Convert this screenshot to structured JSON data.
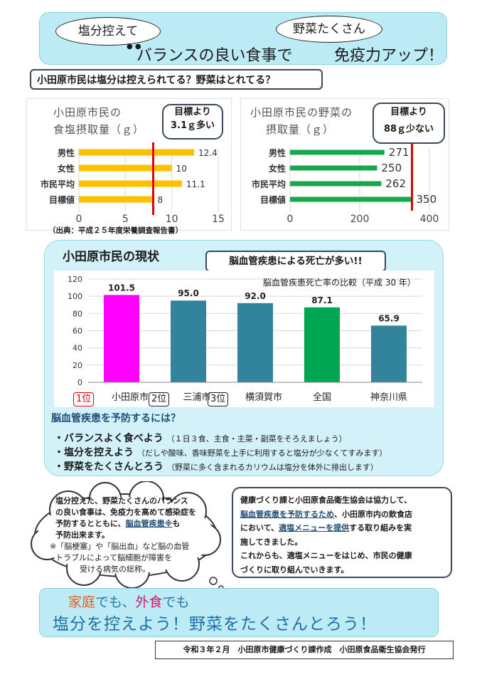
{
  "header": {
    "bubble_left": "塩分控えて",
    "bubble_right": "野菜たくさん",
    "title_main": "バランスの良い食事で",
    "title_sub": "免疫力アップ！"
  },
  "question": "小田原市民は塩分は控えられてる？野菜はとれてる？",
  "salt_panel": {
    "title_line1": "小田原市民の",
    "title_line2": "食塩摂取量（ｇ）",
    "callout_line1": "目標より",
    "callout_line2": "3.1ｇ多い",
    "source": "（出典：平成２５年度栄養調査報告書）"
  },
  "veg_panel": {
    "title_line1": "小田原市民の野菜の",
    "title_line2": "摂取量（ｇ）",
    "callout_line1": "目標より",
    "callout_line2": "88ｇ少ない"
  },
  "status": {
    "title": "小田原市民の現状",
    "headline": "脳血管疾患による死亡が多い!!",
    "chart_title": "脳血管疾患死亡率の比較（平成 30 年）",
    "rank1": "1位",
    "rank2": "2位",
    "rank3": "3位"
  },
  "prevention": {
    "heading": "脳血管疾患を予防するには？",
    "tip1": "・バランスよく食べよう",
    "tip1_note": "（１日３食、主食・主菜・副菜をそろえましょう）",
    "tip2": "・塩分を控えよう",
    "tip2_note": "（だしや酸味、香味野菜を上手に利用すると塩分が少なくてすみます）",
    "tip3": "・野菜をたくさんとろう",
    "tip3_note": "（野菜に多く含まれるカリウムは塩分を体外に排出します）"
  },
  "cloud": {
    "line1": "塩分控えた、野菜たくさんのバランス",
    "line2": "の良い食事は、免疫力を高めて感染症を",
    "line3": "予防するとともに、",
    "line3_link": "脳血管疾患※",
    "line3_end": "も",
    "line4": "予防出来ます。",
    "note1": "※「脳梗塞」や「脳出血」など脳の血管",
    "note2": "トラブルによって脳細胞が障害を",
    "note3": "受ける病気の総称。"
  },
  "info_box": {
    "line1": "健康づくり課と小田原食品衛生協会は協力して、",
    "line2_link": "脳血管疾患を予防するため",
    "line2_end": "、小田原市内の飲食店",
    "line3_a": "において、",
    "line3_link": "適塩メニューを提供",
    "line3_b": "する取り組みを実",
    "line4": "施してきました。",
    "line5": "これからも、適塩メニューをはじめ、市民の健康",
    "line6": "づくりに取り組んでいきます。"
  },
  "bottom_banner": {
    "home": "家庭",
    "de_mo1": "でも、",
    "out": "外食",
    "de_mo2": "でも",
    "slogan": "塩分を控えよう！野菜をたくさんとろう！"
  },
  "footer": "令和３年２月　小田原市健康づくり課作成　小田原食品衛生協会発行",
  "chart_data": [
    {
      "type": "bar",
      "orientation": "horizontal",
      "categories": [
        "男性",
        "女性",
        "市民平均",
        "目標値"
      ],
      "values": [
        12.4,
        10,
        11.1,
        8
      ],
      "value_labels": [
        "12.4",
        "10",
        "11.1",
        "8"
      ],
      "xlim": [
        0,
        15
      ],
      "xticks": [
        "0",
        "5",
        "10",
        "15"
      ],
      "target_line": 8,
      "color": "#ffc000",
      "line_color": "#e00000"
    },
    {
      "type": "bar",
      "orientation": "horizontal",
      "categories": [
        "男性",
        "女性",
        "市民平均",
        "目標値"
      ],
      "values": [
        271,
        250,
        262,
        350
      ],
      "value_labels": [
        "271",
        "250",
        "262",
        "350"
      ],
      "xlim": [
        0,
        400
      ],
      "xticks": [
        "0",
        "200",
        "400"
      ],
      "target_line": 350,
      "color": "#1aa64a",
      "line_color": "#e00000"
    },
    {
      "type": "bar",
      "categories": [
        "小田原市",
        "三浦市",
        "横須賀市",
        "全国",
        "神奈川県"
      ],
      "values": [
        101.5,
        95.0,
        92.0,
        87.1,
        65.9
      ],
      "value_labels": [
        "101.5",
        "95.0",
        "92.0",
        "87.1",
        "65.9"
      ],
      "ylim": [
        0,
        120
      ],
      "yticks": [
        "0",
        "20",
        "40",
        "60",
        "80",
        "100",
        "120"
      ],
      "colors": [
        "#ff00ff",
        "#31849b",
        "#31849b",
        "#00a651",
        "#31849b"
      ]
    }
  ]
}
